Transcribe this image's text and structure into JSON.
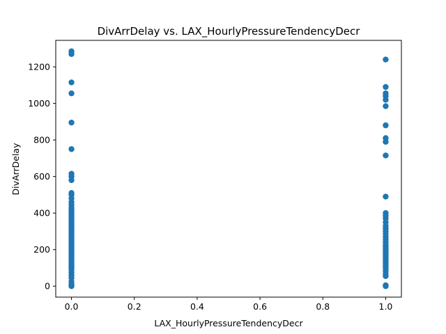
{
  "chart_data": {
    "type": "scatter",
    "title": "DivArrDelay vs. LAX_HourlyPressureTendencyDecr",
    "xlabel": "LAX_HourlyPressureTendencyDecr",
    "ylabel": "DivArrDelay",
    "xlim": [
      -0.05,
      1.05
    ],
    "ylim": [
      -60,
      1345
    ],
    "x_ticks": [
      0.0,
      0.2,
      0.4,
      0.6,
      0.8,
      1.0
    ],
    "x_tick_labels": [
      "0.0",
      "0.2",
      "0.4",
      "0.6",
      "0.8",
      "1.0"
    ],
    "y_ticks": [
      0,
      200,
      400,
      600,
      800,
      1000,
      1200
    ],
    "y_tick_labels": [
      "0",
      "200",
      "400",
      "600",
      "800",
      "1000",
      "1200"
    ],
    "grid": false,
    "marker_color": "#1f77b4",
    "series": [
      {
        "points": [
          {
            "x": 0,
            "y": 0
          },
          {
            "x": 0,
            "y": 5
          },
          {
            "x": 0,
            "y": 10
          },
          {
            "x": 0,
            "y": 25
          },
          {
            "x": 0,
            "y": 45
          },
          {
            "x": 0,
            "y": 60
          },
          {
            "x": 0,
            "y": 75
          },
          {
            "x": 0,
            "y": 90
          },
          {
            "x": 0,
            "y": 100
          },
          {
            "x": 0,
            "y": 110
          },
          {
            "x": 0,
            "y": 120
          },
          {
            "x": 0,
            "y": 130
          },
          {
            "x": 0,
            "y": 140
          },
          {
            "x": 0,
            "y": 150
          },
          {
            "x": 0,
            "y": 160
          },
          {
            "x": 0,
            "y": 170
          },
          {
            "x": 0,
            "y": 180
          },
          {
            "x": 0,
            "y": 190
          },
          {
            "x": 0,
            "y": 200
          },
          {
            "x": 0,
            "y": 210
          },
          {
            "x": 0,
            "y": 220
          },
          {
            "x": 0,
            "y": 230
          },
          {
            "x": 0,
            "y": 240
          },
          {
            "x": 0,
            "y": 250
          },
          {
            "x": 0,
            "y": 260
          },
          {
            "x": 0,
            "y": 270
          },
          {
            "x": 0,
            "y": 280
          },
          {
            "x": 0,
            "y": 290
          },
          {
            "x": 0,
            "y": 300
          },
          {
            "x": 0,
            "y": 310
          },
          {
            "x": 0,
            "y": 320
          },
          {
            "x": 0,
            "y": 330
          },
          {
            "x": 0,
            "y": 340
          },
          {
            "x": 0,
            "y": 350
          },
          {
            "x": 0,
            "y": 360
          },
          {
            "x": 0,
            "y": 370
          },
          {
            "x": 0,
            "y": 380
          },
          {
            "x": 0,
            "y": 390
          },
          {
            "x": 0,
            "y": 400
          },
          {
            "x": 0,
            "y": 410
          },
          {
            "x": 0,
            "y": 420
          },
          {
            "x": 0,
            "y": 430
          },
          {
            "x": 0,
            "y": 445
          },
          {
            "x": 0,
            "y": 460
          },
          {
            "x": 0,
            "y": 480
          },
          {
            "x": 0,
            "y": 500
          },
          {
            "x": 0,
            "y": 510
          },
          {
            "x": 0,
            "y": 580
          },
          {
            "x": 0,
            "y": 600
          },
          {
            "x": 0,
            "y": 615
          },
          {
            "x": 0,
            "y": 750
          },
          {
            "x": 0,
            "y": 895
          },
          {
            "x": 0,
            "y": 1055
          },
          {
            "x": 0,
            "y": 1115
          },
          {
            "x": 0,
            "y": 1270
          },
          {
            "x": 0,
            "y": 1285
          },
          {
            "x": 1,
            "y": 0
          },
          {
            "x": 1,
            "y": 5
          },
          {
            "x": 1,
            "y": 55
          },
          {
            "x": 1,
            "y": 65
          },
          {
            "x": 1,
            "y": 80
          },
          {
            "x": 1,
            "y": 95
          },
          {
            "x": 1,
            "y": 105
          },
          {
            "x": 1,
            "y": 115
          },
          {
            "x": 1,
            "y": 125
          },
          {
            "x": 1,
            "y": 135
          },
          {
            "x": 1,
            "y": 145
          },
          {
            "x": 1,
            "y": 155
          },
          {
            "x": 1,
            "y": 165
          },
          {
            "x": 1,
            "y": 175
          },
          {
            "x": 1,
            "y": 185
          },
          {
            "x": 1,
            "y": 195
          },
          {
            "x": 1,
            "y": 205
          },
          {
            "x": 1,
            "y": 215
          },
          {
            "x": 1,
            "y": 225
          },
          {
            "x": 1,
            "y": 240
          },
          {
            "x": 1,
            "y": 255
          },
          {
            "x": 1,
            "y": 270
          },
          {
            "x": 1,
            "y": 285
          },
          {
            "x": 1,
            "y": 300
          },
          {
            "x": 1,
            "y": 315
          },
          {
            "x": 1,
            "y": 330
          },
          {
            "x": 1,
            "y": 350
          },
          {
            "x": 1,
            "y": 370
          },
          {
            "x": 1,
            "y": 385
          },
          {
            "x": 1,
            "y": 400
          },
          {
            "x": 1,
            "y": 490
          },
          {
            "x": 1,
            "y": 715
          },
          {
            "x": 1,
            "y": 790
          },
          {
            "x": 1,
            "y": 810
          },
          {
            "x": 1,
            "y": 880
          },
          {
            "x": 1,
            "y": 985
          },
          {
            "x": 1,
            "y": 1020
          },
          {
            "x": 1,
            "y": 1040
          },
          {
            "x": 1,
            "y": 1055
          },
          {
            "x": 1,
            "y": 1090
          },
          {
            "x": 1,
            "y": 1240
          }
        ]
      }
    ]
  }
}
